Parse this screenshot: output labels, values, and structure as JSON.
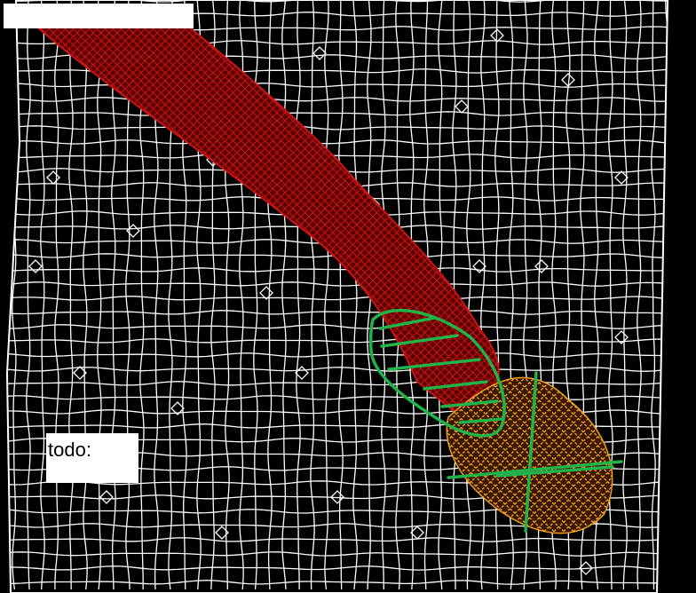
{
  "annotation": {
    "todo_label": "todo:"
  },
  "colors": {
    "background": "#000000",
    "background_mesh": "#ffffff",
    "vessel_mesh": "#d01414",
    "vessel_fill": "#5a0000",
    "tip_mesh": "#f0a020",
    "marker_green": "#22b24a"
  },
  "layers": [
    "background-mesh",
    "vessel-mesh",
    "tip-mesh",
    "green-annotation"
  ]
}
